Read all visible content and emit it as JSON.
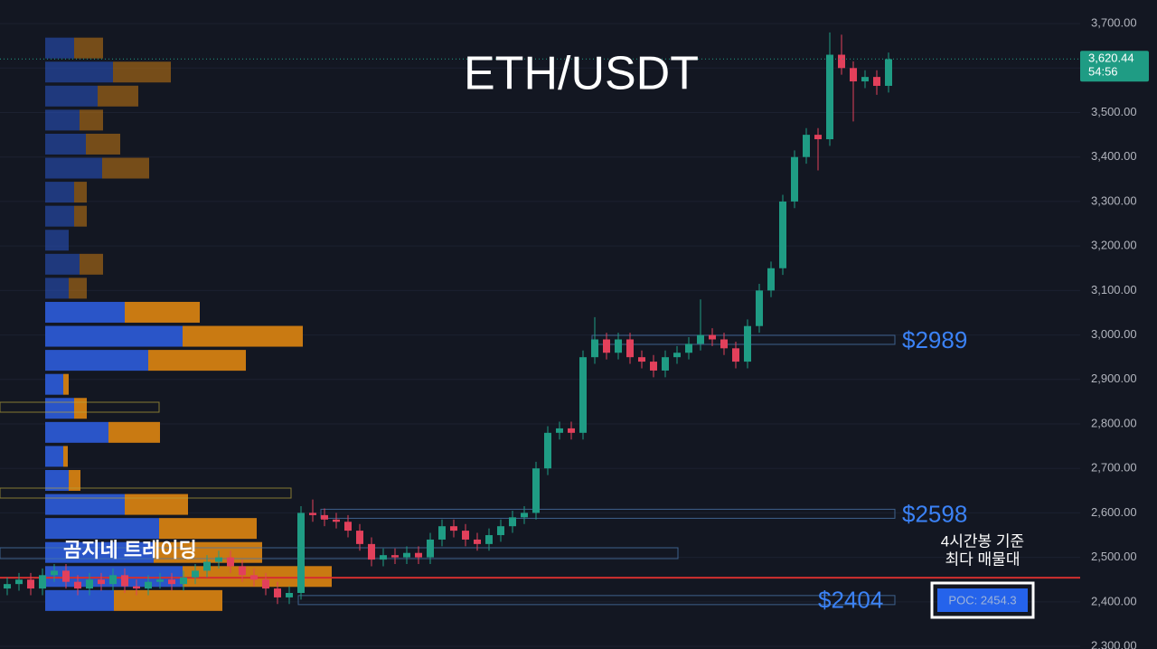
{
  "chart_data": {
    "type": "candlestick",
    "title": "ETH/USDT",
    "watermark": "곰지네 트레이딩",
    "ylim": [
      2294,
      3753
    ],
    "yticks": [
      {
        "value": 2300,
        "label": "2,300.00"
      },
      {
        "value": 2400,
        "label": "2,400.00"
      },
      {
        "value": 2500,
        "label": "2,500.00"
      },
      {
        "value": 2600,
        "label": "2,600.00"
      },
      {
        "value": 2700,
        "label": "2,700.00"
      },
      {
        "value": 2800,
        "label": "2,800.00"
      },
      {
        "value": 2900,
        "label": "2,900.00"
      },
      {
        "value": 3000,
        "label": "3,000.00"
      },
      {
        "value": 3100,
        "label": "3,100.00"
      },
      {
        "value": 3200,
        "label": "3,200.00"
      },
      {
        "value": 3300,
        "label": "3,300.00"
      },
      {
        "value": 3400,
        "label": "3,400.00"
      },
      {
        "value": 3500,
        "label": "3,500.00"
      },
      {
        "value": 3600,
        "label": "3,600.00"
      },
      {
        "value": 3700,
        "label": "3,700.00"
      }
    ],
    "up_color": "#1f9c84",
    "down_color": "#e2405b",
    "open": [
      2430,
      2440,
      2450,
      2430,
      2460,
      2470,
      2445,
      2430,
      2450,
      2440,
      2460,
      2435,
      2430,
      2445,
      2450,
      2440,
      2455,
      2470,
      2490,
      2500,
      2480,
      2460,
      2450,
      2430,
      2410,
      2420,
      2600,
      2595,
      2585,
      2580,
      2560,
      2530,
      2495,
      2505,
      2500,
      2510,
      2500,
      2540,
      2570,
      2560,
      2540,
      2530,
      2550,
      2570,
      2590,
      2600,
      2700,
      2780,
      2790,
      2780,
      2950,
      2990,
      2960,
      2990,
      2950,
      2940,
      2920,
      2950,
      2960,
      2980,
      3000,
      2990,
      2970,
      2940,
      3020,
      3100,
      3150,
      3300,
      3400,
      3450,
      3440,
      3630,
      3600,
      3570,
      3580,
      3560
    ],
    "high": [
      2455,
      2465,
      2465,
      2475,
      2485,
      2485,
      2460,
      2465,
      2465,
      2475,
      2475,
      2450,
      2460,
      2465,
      2465,
      2470,
      2485,
      2505,
      2515,
      2515,
      2495,
      2475,
      2465,
      2445,
      2435,
      2615,
      2630,
      2610,
      2600,
      2595,
      2575,
      2545,
      2520,
      2520,
      2525,
      2525,
      2555,
      2585,
      2585,
      2575,
      2555,
      2565,
      2585,
      2605,
      2615,
      2715,
      2795,
      2805,
      2805,
      2965,
      3040,
      3005,
      3005,
      3005,
      2965,
      2955,
      2965,
      2975,
      2995,
      3080,
      3015,
      3005,
      2985,
      3035,
      3115,
      3165,
      3315,
      3415,
      3465,
      3465,
      3680,
      3675,
      3615,
      3595,
      3595,
      3635
    ],
    "low": [
      2415,
      2425,
      2415,
      2415,
      2445,
      2430,
      2415,
      2415,
      2425,
      2425,
      2420,
      2415,
      2415,
      2430,
      2425,
      2425,
      2440,
      2455,
      2475,
      2465,
      2445,
      2435,
      2415,
      2395,
      2395,
      2405,
      2580,
      2570,
      2565,
      2545,
      2515,
      2480,
      2480,
      2485,
      2485,
      2485,
      2485,
      2525,
      2545,
      2525,
      2515,
      2515,
      2535,
      2555,
      2575,
      2585,
      2685,
      2765,
      2765,
      2765,
      2935,
      2945,
      2945,
      2935,
      2925,
      2905,
      2905,
      2935,
      2945,
      2965,
      2975,
      2955,
      2925,
      2925,
      3005,
      3085,
      3135,
      3285,
      3385,
      3370,
      3425,
      3585,
      3480,
      3555,
      3540,
      3545
    ],
    "close": [
      2440,
      2450,
      2430,
      2460,
      2470,
      2445,
      2430,
      2450,
      2440,
      2460,
      2435,
      2430,
      2445,
      2450,
      2440,
      2455,
      2470,
      2490,
      2500,
      2480,
      2460,
      2450,
      2430,
      2410,
      2420,
      2600,
      2595,
      2585,
      2580,
      2560,
      2530,
      2495,
      2505,
      2500,
      2510,
      2500,
      2540,
      2570,
      2560,
      2540,
      2530,
      2550,
      2570,
      2590,
      2600,
      2700,
      2780,
      2790,
      2780,
      2950,
      2990,
      2960,
      2990,
      2950,
      2940,
      2920,
      2950,
      2960,
      2980,
      3000,
      2990,
      2970,
      2940,
      3020,
      3100,
      3150,
      3300,
      3400,
      3450,
      3440,
      3630,
      3600,
      3570,
      3580,
      3560,
      3620
    ],
    "volume_profile": {
      "prices": [
        3645,
        3591,
        3537,
        3483,
        3429,
        3375,
        3321,
        3267,
        3213,
        3159,
        3105,
        3051,
        2997,
        2943,
        2889,
        2835,
        2781,
        2727,
        2673,
        2619,
        2565,
        2511,
        2457,
        2403
      ],
      "buy": [
        32,
        75,
        58,
        38,
        45,
        63,
        32,
        32,
        26,
        38,
        26,
        88,
        152,
        114,
        20,
        32,
        70,
        20,
        26,
        88,
        126,
        120,
        152,
        76
      ],
      "sell": [
        32,
        64,
        45,
        26,
        38,
        52,
        14,
        14,
        0,
        26,
        20,
        83,
        133,
        108,
        6,
        14,
        57,
        5,
        13,
        70,
        108,
        120,
        165,
        120
      ],
      "buy_color": "#2a55c8",
      "sell_color": "#c97a12"
    },
    "levels": [
      {
        "value": 2989,
        "label": "$2989"
      },
      {
        "value": 2598,
        "label": "$2598"
      },
      {
        "value": 2404,
        "label": "$2404"
      }
    ],
    "poc": {
      "value": 2454.3,
      "label": "POC: 2454.3",
      "note_line1": "4시간봉 기준",
      "note_line2": "최다 매물대"
    },
    "last_price": {
      "value": 3620.44,
      "label": "3,620.44",
      "countdown": "54:56"
    }
  }
}
